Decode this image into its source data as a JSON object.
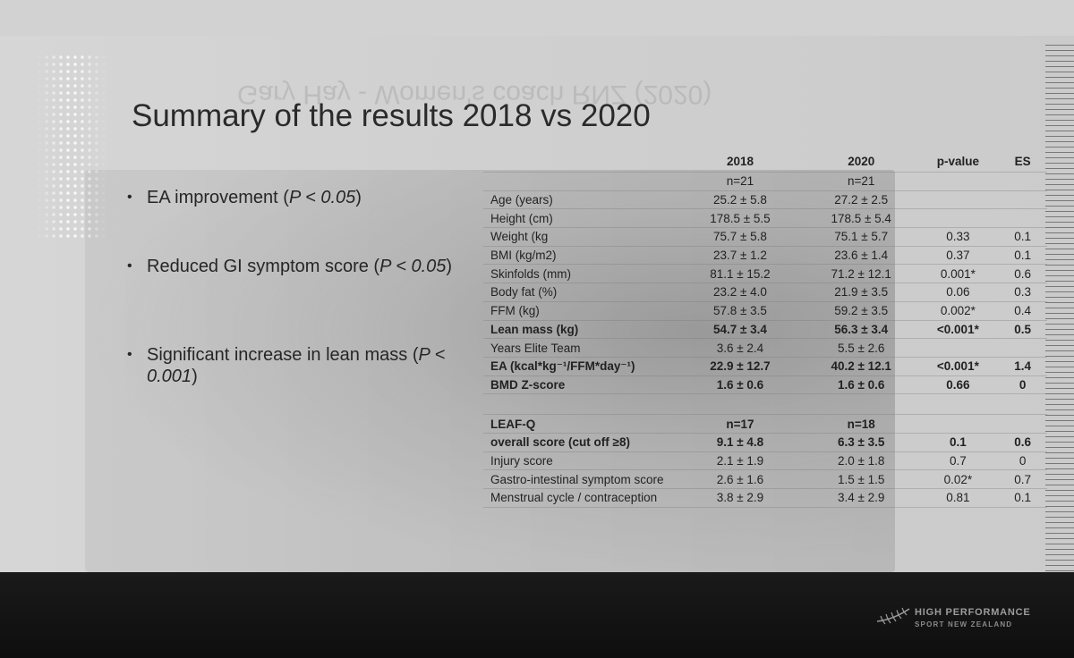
{
  "slide": {
    "title": "Summary of the results 2018 vs 2020",
    "mirrored_watermark": "Gary Hay - Women's coach RNZ (2020)",
    "bullets": [
      {
        "text": "EA improvement (",
        "p": "P < 0.05",
        "end": ")"
      },
      {
        "text": "Reduced GI symptom score (",
        "p": "P < 0.05",
        "end": ")"
      },
      {
        "text": "Significant increase in lean mass (",
        "p": "P < 0.001",
        "end": ")"
      }
    ]
  },
  "table": {
    "headers": [
      "",
      "2018",
      "2020",
      "p-value",
      "ES"
    ],
    "rows": [
      {
        "label": "",
        "y2018": "n=21",
        "y2020": "n=21",
        "p": "",
        "es": "",
        "bold": false
      },
      {
        "label": "Age (years)",
        "y2018": "25.2 ± 5.8",
        "y2020": "27.2 ± 2.5",
        "p": "",
        "es": "",
        "bold": false
      },
      {
        "label": "Height (cm)",
        "y2018": "178.5 ± 5.5",
        "y2020": "178.5 ± 5.4",
        "p": "",
        "es": "",
        "bold": false
      },
      {
        "label": "Weight (kg",
        "y2018": "75.7 ± 5.8",
        "y2020": "75.1 ± 5.7",
        "p": "0.33",
        "es": "0.1",
        "bold": false
      },
      {
        "label": "BMI (kg/m2)",
        "y2018": "23.7 ± 1.2",
        "y2020": "23.6 ± 1.4",
        "p": "0.37",
        "es": "0.1",
        "bold": false
      },
      {
        "label": "Skinfolds (mm)",
        "y2018": "81.1 ± 15.2",
        "y2020": "71.2 ± 12.1",
        "p": "0.001*",
        "es": "0.6",
        "bold": false
      },
      {
        "label": "Body fat (%)",
        "y2018": "23.2 ± 4.0",
        "y2020": "21.9 ± 3.5",
        "p": "0.06",
        "es": "0.3",
        "bold": false
      },
      {
        "label": "FFM (kg)",
        "y2018": "57.8 ± 3.5",
        "y2020": "59.2 ± 3.5",
        "p": "0.002*",
        "es": "0.4",
        "bold": false
      },
      {
        "label": "Lean mass (kg)",
        "y2018": "54.7 ± 3.4",
        "y2020": "56.3 ± 3.4",
        "p": "<0.001*",
        "es": "0.5",
        "bold": true
      },
      {
        "label": "Years Elite Team",
        "y2018": "3.6 ± 2.4",
        "y2020": "5.5 ± 2.6",
        "p": "",
        "es": "",
        "bold": false
      },
      {
        "label": "EA (kcal*kg⁻¹/FFM*day⁻¹)",
        "y2018": "22.9 ± 12.7",
        "y2020": "40.2 ± 12.1",
        "p": "<0.001*",
        "es": "1.4",
        "bold": true
      },
      {
        "label": "BMD Z-score",
        "y2018": "1.6 ± 0.6",
        "y2020": "1.6 ± 0.6",
        "p": "0.66",
        "es": "0",
        "bold": true
      },
      {
        "label": "",
        "y2018": "",
        "y2020": "",
        "p": "",
        "es": "",
        "bold": false,
        "gap": true
      },
      {
        "label": "LEAF-Q",
        "y2018": "n=17",
        "y2020": "n=18",
        "p": "",
        "es": "",
        "bold": true
      },
      {
        "label": "overall score (cut off ≥8)",
        "y2018": "9.1 ± 4.8",
        "y2020": "6.3 ± 3.5",
        "p": "0.1",
        "es": "0.6",
        "bold": true
      },
      {
        "label": "Injury score",
        "y2018": "2.1 ± 1.9",
        "y2020": "2.0 ± 1.8",
        "p": "0.7",
        "es": "0",
        "bold": false
      },
      {
        "label": "Gastro-intestinal symptom score",
        "y2018": "2.6 ± 1.6",
        "y2020": "1.5 ± 1.5",
        "p": "0.02*",
        "es": "0.7",
        "bold": false
      },
      {
        "label": "Menstrual cycle / contraception",
        "y2018": "3.8 ± 2.9",
        "y2020": "3.4 ± 2.9",
        "p": "0.81",
        "es": "0.1",
        "bold": false
      }
    ]
  },
  "footer": {
    "brand_line1": "HIGH PERFORMANCE",
    "brand_line2": "SPORT NEW ZEALAND",
    "logo_icon": "silver-fern-icon"
  }
}
